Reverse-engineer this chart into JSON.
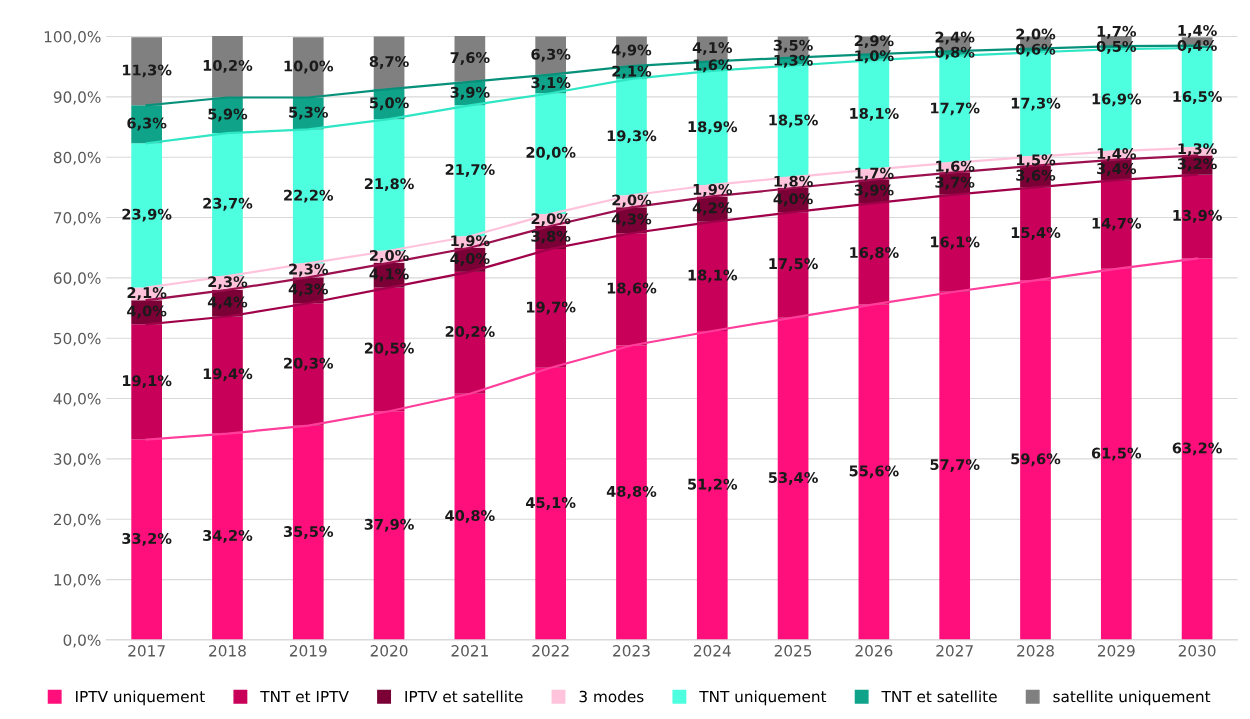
{
  "chart_data": {
    "type": "bar",
    "stacked": true,
    "categories": [
      "2017",
      "2018",
      "2019",
      "2020",
      "2021",
      "2022",
      "2023",
      "2024",
      "2025",
      "2026",
      "2027",
      "2028",
      "2029",
      "2030"
    ],
    "series": [
      {
        "name": "IPTV uniquement",
        "color": "#ff0f7b",
        "values": [
          33.2,
          34.2,
          35.5,
          37.9,
          40.8,
          45.1,
          48.8,
          51.2,
          53.4,
          55.6,
          57.7,
          59.6,
          61.5,
          63.2
        ],
        "value_labels": [
          "33,2%",
          "34,2%",
          "35,5%",
          "37,9%",
          "40,8%",
          "45,1%",
          "48,8%",
          "51,2%",
          "53,4%",
          "55,6%",
          "57,7%",
          "59,6%",
          "61,5%",
          "63,2%"
        ]
      },
      {
        "name": "TNT et IPTV",
        "color": "#c8005a",
        "values": [
          19.1,
          19.4,
          20.3,
          20.5,
          20.2,
          19.7,
          18.6,
          18.1,
          17.5,
          16.8,
          16.1,
          15.4,
          14.7,
          13.9
        ],
        "value_labels": [
          "19,1%",
          "19,4%",
          "20,3%",
          "20,5%",
          "20,2%",
          "19,7%",
          "18,6%",
          "18,1%",
          "17,5%",
          "16,8%",
          "16,1%",
          "15,4%",
          "14,7%",
          "13,9%"
        ]
      },
      {
        "name": "IPTV et satellite",
        "color": "#7a0035",
        "values": [
          4.0,
          4.4,
          4.3,
          4.1,
          4.0,
          3.8,
          4.3,
          4.2,
          4.0,
          3.9,
          3.7,
          3.6,
          3.4,
          3.2
        ],
        "value_labels": [
          "4,0%",
          "4,4%",
          "4,3%",
          "4,1%",
          "4,0%",
          "3,8%",
          "4,3%",
          "4,2%",
          "4,0%",
          "3,9%",
          "3,7%",
          "3,6%",
          "3,4%",
          "3,2%"
        ]
      },
      {
        "name": "3 modes",
        "color": "#ffc4dc",
        "values": [
          2.1,
          2.3,
          2.3,
          2.0,
          1.9,
          2.0,
          2.0,
          1.9,
          1.8,
          1.7,
          1.6,
          1.5,
          1.4,
          1.3
        ],
        "value_labels": [
          "2,1%",
          "2,3%",
          "2,3%",
          "2,0%",
          "1,9%",
          "2,0%",
          "2,0%",
          "1,9%",
          "1,8%",
          "1,7%",
          "1,6%",
          "1,5%",
          "1,4%",
          "1,3%"
        ]
      },
      {
        "name": "TNT uniquement",
        "color": "#4dffdf",
        "values": [
          23.9,
          23.7,
          22.2,
          21.8,
          21.7,
          20.0,
          19.3,
          18.9,
          18.5,
          18.1,
          17.7,
          17.3,
          16.9,
          16.5
        ],
        "value_labels": [
          "23,9%",
          "23,7%",
          "22,2%",
          "21,8%",
          "21,7%",
          "20,0%",
          "19,3%",
          "18,9%",
          "18,5%",
          "18,1%",
          "17,7%",
          "17,3%",
          "16,9%",
          "16,5%"
        ]
      },
      {
        "name": "TNT et satellite",
        "color": "#0fa38a",
        "values": [
          6.3,
          5.9,
          5.3,
          5.0,
          3.9,
          3.1,
          2.1,
          1.6,
          1.3,
          1.0,
          0.8,
          0.6,
          0.5,
          0.4
        ],
        "value_labels": [
          "6,3%",
          "5,9%",
          "5,3%",
          "5,0%",
          "3,9%",
          "3,1%",
          "2,1%",
          "1,6%",
          "1,3%",
          "1,0%",
          "0,8%",
          "0,6%",
          "0,5%",
          "0,4%"
        ]
      },
      {
        "name": "satellite uniquement",
        "color": "#808080",
        "values": [
          11.3,
          10.2,
          10.0,
          8.7,
          7.6,
          6.3,
          4.9,
          4.1,
          3.5,
          2.9,
          2.4,
          2.0,
          1.7,
          1.4
        ],
        "value_labels": [
          "11,3%",
          "10,2%",
          "10,0%",
          "8,7%",
          "7,6%",
          "6,3%",
          "4,9%",
          "4,1%",
          "3,5%",
          "2,9%",
          "2,4%",
          "2,0%",
          "1,7%",
          "1,4%"
        ]
      },
      {
        "type": "line",
        "color": "#ff3d9a",
        "values": [
          33.2,
          34.2,
          35.5,
          37.9,
          40.8,
          45.1,
          48.8,
          51.2,
          53.4,
          55.6,
          57.7,
          59.6,
          61.5,
          63.2
        ]
      },
      {
        "type": "line",
        "color": "#a0004a",
        "values": [
          52.3,
          53.6,
          55.8,
          58.4,
          61.0,
          64.8,
          67.4,
          69.3,
          70.9,
          72.4,
          73.8,
          75.0,
          76.2,
          77.1
        ]
      },
      {
        "type": "line",
        "color": "#9c1050",
        "values": [
          56.3,
          58.0,
          60.1,
          62.5,
          65.0,
          68.6,
          71.7,
          73.5,
          74.9,
          76.3,
          77.5,
          78.6,
          79.6,
          80.3
        ]
      },
      {
        "type": "line",
        "color": "#ffc4dc",
        "values": [
          58.4,
          60.3,
          62.4,
          64.5,
          66.9,
          70.6,
          73.7,
          75.4,
          76.7,
          78.0,
          79.1,
          80.1,
          81.0,
          81.6
        ]
      },
      {
        "type": "line",
        "color": "#2ee6c4",
        "values": [
          82.3,
          84.0,
          84.6,
          86.3,
          88.6,
          90.6,
          93.0,
          94.3,
          95.2,
          96.1,
          96.8,
          97.4,
          97.9,
          98.1
        ]
      },
      {
        "type": "line",
        "color": "#07917a",
        "values": [
          88.6,
          89.9,
          89.9,
          91.3,
          92.5,
          93.7,
          95.1,
          95.9,
          96.5,
          97.1,
          97.6,
          98.0,
          98.4,
          98.5
        ]
      }
    ],
    "ylim": [
      0,
      100.1
    ],
    "yticks": [
      {
        "value": 0,
        "label": "0,0%"
      },
      {
        "value": 10,
        "label": "10,0%"
      },
      {
        "value": 20,
        "label": "20,0%"
      },
      {
        "value": 30,
        "label": "30,0%"
      },
      {
        "value": 40,
        "label": "40,0%"
      },
      {
        "value": 50,
        "label": "50,0%"
      },
      {
        "value": 60,
        "label": "60,0%"
      },
      {
        "value": 70,
        "label": "70,0%"
      },
      {
        "value": 80,
        "label": "80,0%"
      },
      {
        "value": 90,
        "label": "90,0%"
      },
      {
        "value": 100,
        "label": "100,0%"
      }
    ],
    "grid": "y",
    "legend": "bottom"
  }
}
